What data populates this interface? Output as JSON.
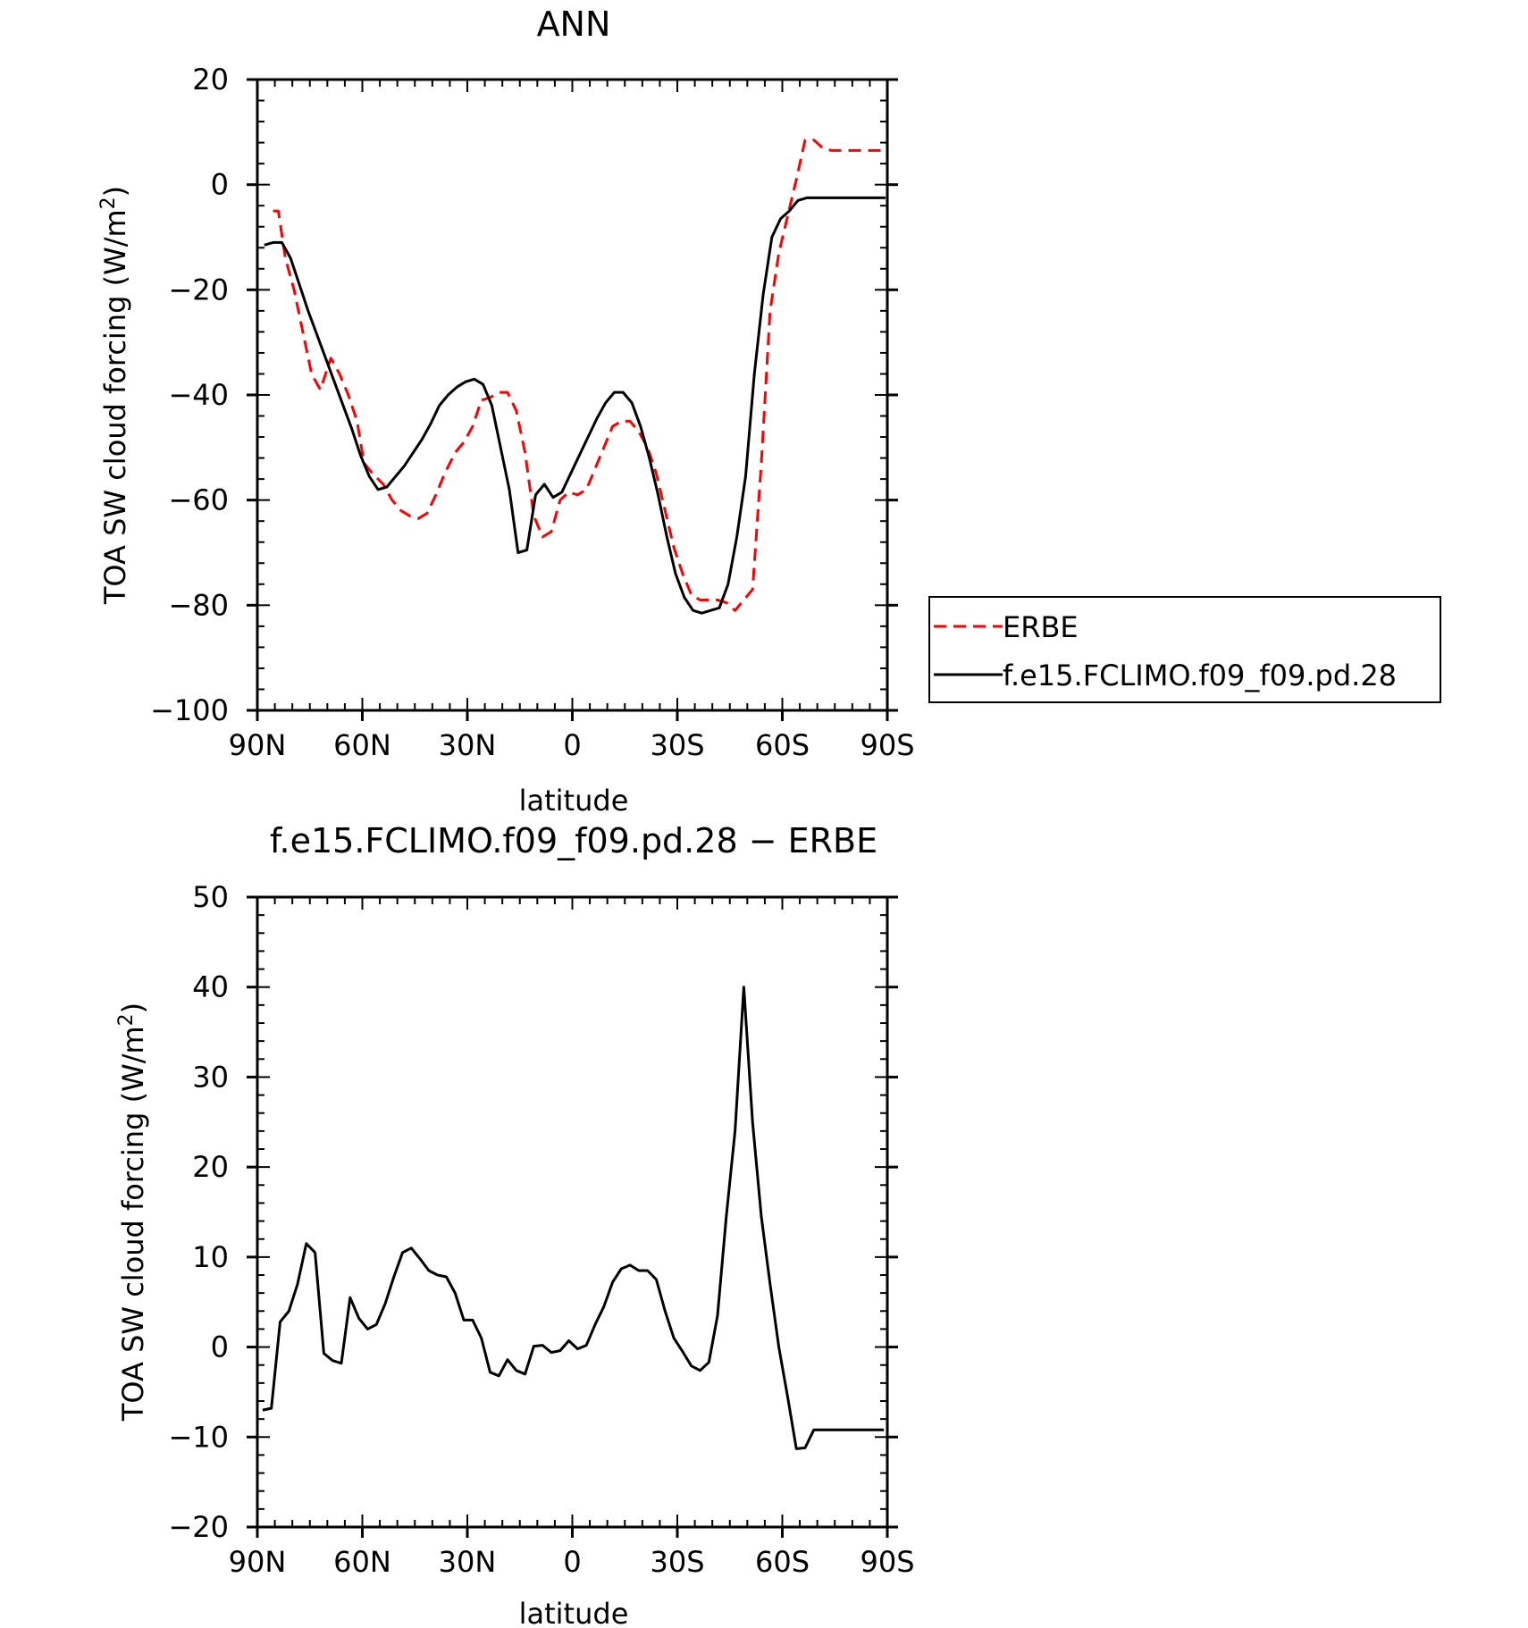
{
  "chart_data": [
    {
      "type": "line",
      "title": "ANN",
      "xlabel": "latitude",
      "ylabel_main": "TOA SW cloud forcing (W/m",
      "ylabel_sup": "2",
      "ylabel_close": ")",
      "xlim": [
        90,
        -90
      ],
      "ylim": [
        -100,
        20
      ],
      "xticks": [
        {
          "value": 90,
          "label": "90N"
        },
        {
          "value": 60,
          "label": "60N"
        },
        {
          "value": 30,
          "label": "30N"
        },
        {
          "value": 0,
          "label": "0"
        },
        {
          "value": -30,
          "label": "30S"
        },
        {
          "value": -60,
          "label": "60S"
        },
        {
          "value": -90,
          "label": "90S"
        }
      ],
      "yticks": [
        {
          "value": 20,
          "label": "20"
        },
        {
          "value": 0,
          "label": "0"
        },
        {
          "value": -20,
          "label": "−20"
        },
        {
          "value": -40,
          "label": "−40"
        },
        {
          "value": -60,
          "label": "−60"
        },
        {
          "value": -80,
          "label": "−80"
        },
        {
          "value": -100,
          "label": "−100"
        }
      ],
      "legend": {
        "placement": "right"
      },
      "series": [
        {
          "name": "ERBE",
          "color": "#ff0000",
          "dash": "dashed",
          "x": [
            85.5,
            84,
            82,
            79.5,
            77,
            74.5,
            72,
            69,
            66.5,
            64,
            61.5,
            59.5,
            57,
            54,
            51.5,
            49,
            46.5,
            44,
            41.5,
            39,
            36.5,
            33.5,
            31,
            28.5,
            26,
            23.5,
            21,
            18.5,
            16,
            13.5,
            11,
            8.5,
            6,
            3.5,
            1,
            -1.5,
            -4,
            -6.5,
            -9,
            -11.5,
            -14,
            -16.5,
            -19,
            -21.5,
            -24,
            -26.5,
            -29,
            -31.5,
            -34,
            -36.5,
            -39,
            -41.5,
            -44,
            -46.5,
            -49,
            -51.5,
            -54,
            -56.5,
            -59,
            -61.5,
            -64,
            -66.5,
            -69,
            -71.5,
            -74,
            -76.5,
            -79,
            -81.5,
            -84,
            -86.5,
            -89
          ],
          "y": [
            -5,
            -5,
            -14,
            -20,
            -28,
            -36,
            -39,
            -33,
            -36,
            -40,
            -45,
            -53,
            -55,
            -57,
            -60,
            -62,
            -63,
            -63.5,
            -62.5,
            -59,
            -55,
            -51,
            -49,
            -46,
            -41,
            -40.5,
            -39.5,
            -39.5,
            -43,
            -51,
            -63,
            -67,
            -66,
            -60,
            -58.5,
            -59,
            -58,
            -54,
            -50,
            -46,
            -45,
            -45,
            -47,
            -50,
            -55,
            -62,
            -69,
            -74,
            -78,
            -79,
            -79,
            -79,
            -79.5,
            -81,
            -79,
            -77,
            -53,
            -24,
            -13,
            -6,
            1,
            8.5,
            8.5,
            7,
            6.5,
            6.5,
            6.5,
            6.5,
            6.5,
            6.5,
            6.5
          ]
        },
        {
          "name": "f.e15.FCLIMO.f09_f09.pd.28",
          "color": "#000000",
          "dash": "solid",
          "x": [
            88,
            85.5,
            83,
            80.5,
            78,
            75.5,
            73,
            70.5,
            68,
            65.5,
            63,
            60.5,
            58,
            55.5,
            53,
            50.5,
            48,
            45.5,
            43,
            40.5,
            38,
            35.5,
            33,
            30.5,
            28,
            25.5,
            23,
            20.5,
            18,
            15.5,
            13,
            10.5,
            8,
            5.5,
            3,
            0.5,
            -2,
            -4.5,
            -7,
            -9.5,
            -12,
            -14.5,
            -17,
            -19.5,
            -22,
            -24.5,
            -27,
            -29.5,
            -32,
            -34.5,
            -37,
            -39.5,
            -42,
            -44.5,
            -47,
            -49.5,
            -52,
            -54.5,
            -57,
            -59.5,
            -62,
            -64.5,
            -67,
            -69.5,
            -72,
            -74.5,
            -77,
            -79.5,
            -82,
            -84.5,
            -87,
            -89.5
          ],
          "y": [
            -11.5,
            -11,
            -11,
            -14,
            -19,
            -24,
            -28.5,
            -33,
            -37.5,
            -42,
            -46.5,
            -51.5,
            -55.5,
            -58,
            -57.5,
            -55.5,
            -53.5,
            -51,
            -48.5,
            -45.5,
            -42,
            -40,
            -38.5,
            -37.5,
            -37,
            -38,
            -42,
            -50,
            -58,
            -70,
            -69.5,
            -59,
            -57,
            -59.5,
            -58.5,
            -55,
            -51.5,
            -48,
            -44.5,
            -41.5,
            -39.5,
            -39.5,
            -41.5,
            -46,
            -52,
            -59,
            -67,
            -74,
            -78.5,
            -81,
            -81.5,
            -81,
            -80.5,
            -76,
            -67,
            -55.5,
            -36,
            -21,
            -10,
            -6.5,
            -5,
            -3,
            -2.5,
            -2.5,
            -2.5,
            -2.5,
            -2.5,
            -2.5,
            -2.5,
            -2.5,
            -2.5,
            -2.5
          ]
        }
      ]
    },
    {
      "type": "line",
      "title": "f.e15.FCLIMO.f09_f09.pd.28 − ERBE",
      "xlabel": "latitude",
      "ylabel_main": "TOA SW cloud forcing (W/m",
      "ylabel_sup": "2",
      "ylabel_close": ")",
      "xlim": [
        90,
        -90
      ],
      "ylim": [
        -20,
        50
      ],
      "xticks": [
        {
          "value": 90,
          "label": "90N"
        },
        {
          "value": 60,
          "label": "60N"
        },
        {
          "value": 30,
          "label": "30N"
        },
        {
          "value": 0,
          "label": "0"
        },
        {
          "value": -30,
          "label": "30S"
        },
        {
          "value": -60,
          "label": "60S"
        },
        {
          "value": -90,
          "label": "90S"
        }
      ],
      "yticks": [
        {
          "value": 50,
          "label": "50"
        },
        {
          "value": 40,
          "label": "40"
        },
        {
          "value": 30,
          "label": "30"
        },
        {
          "value": 20,
          "label": "20"
        },
        {
          "value": 10,
          "label": "10"
        },
        {
          "value": 0,
          "label": "0"
        },
        {
          "value": -10,
          "label": "−10"
        },
        {
          "value": -20,
          "label": "−20"
        }
      ],
      "series": [
        {
          "color": "#000000",
          "dash": "solid",
          "x": [
            88.5,
            86,
            83.5,
            81,
            78.5,
            76,
            73.5,
            71,
            68.5,
            66,
            63.5,
            61,
            58.5,
            56,
            53.5,
            51,
            48.5,
            46,
            43.5,
            41,
            38.5,
            36,
            33.5,
            31,
            28.5,
            26,
            23.5,
            21,
            18.5,
            16,
            13.5,
            11,
            8.5,
            6,
            3.5,
            1,
            -1.5,
            -4,
            -6.5,
            -9,
            -11.5,
            -14,
            -16.5,
            -19,
            -21.5,
            -24,
            -26.5,
            -29,
            -31.5,
            -34,
            -36.5,
            -39,
            -41.5,
            -44,
            -46.5,
            -49,
            -51.5,
            -54,
            -56.5,
            -59,
            -61.5,
            -64,
            -66.5,
            -69,
            -71.5,
            -74,
            -76.5,
            -79,
            -81.5,
            -84,
            -86.5,
            -89
          ],
          "y": [
            -7,
            -6.8,
            2.8,
            4,
            7,
            11.5,
            10.5,
            -0.7,
            -1.5,
            -1.8,
            5.5,
            3.2,
            2,
            2.5,
            4.8,
            7.8,
            10.5,
            11,
            9.8,
            8.5,
            8,
            7.8,
            6,
            3,
            3,
            1,
            -2.8,
            -3.2,
            -1.4,
            -2.6,
            -3,
            0.1,
            0.2,
            -0.6,
            -0.4,
            0.7,
            -0.2,
            0.2,
            2.5,
            4.5,
            7.2,
            8.7,
            9.1,
            8.5,
            8.5,
            7.5,
            4,
            1,
            -0.5,
            -2.1,
            -2.6,
            -1.7,
            3.5,
            14.5,
            24,
            40,
            25,
            14.5,
            7,
            0,
            -5.5,
            -11.3,
            -11.2,
            -9.2,
            -9.2,
            -9.2,
            -9.2,
            -9.2,
            -9.2,
            -9.2,
            -9.2,
            -9.2
          ]
        }
      ]
    }
  ]
}
